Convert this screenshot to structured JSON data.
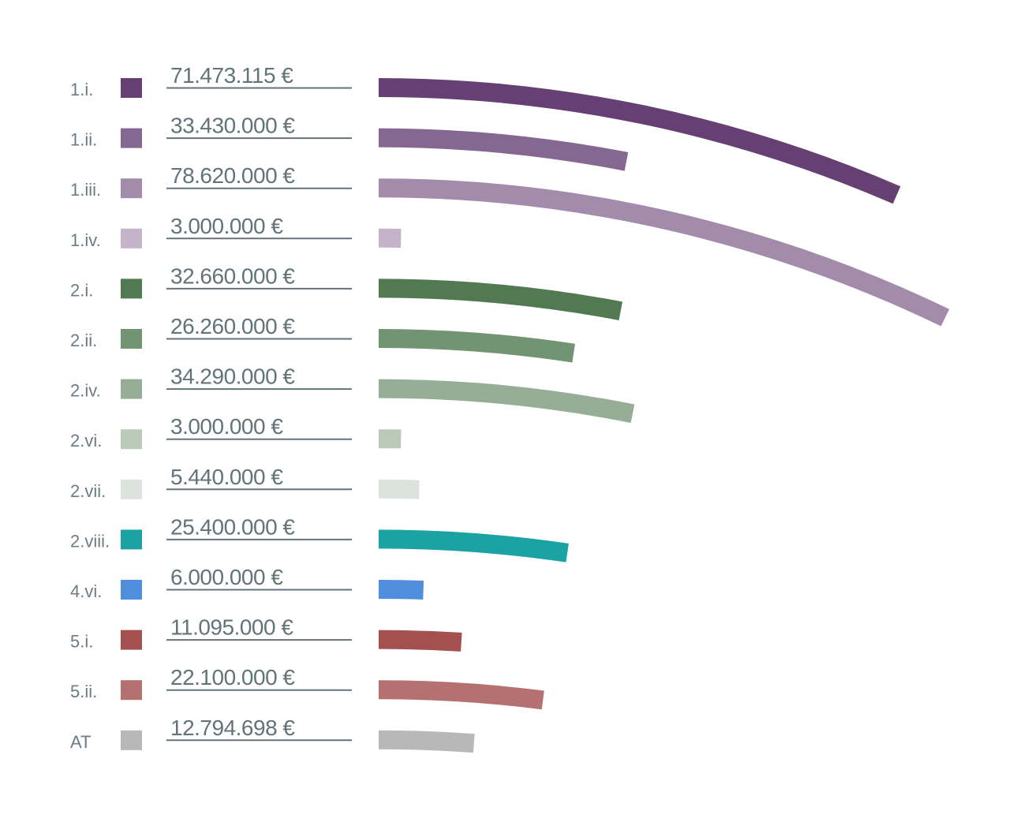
{
  "chart_data": {
    "type": "bar",
    "orientation": "horizontal-curved",
    "unit": "€",
    "categories": [
      "1.i.",
      "1.ii.",
      "1.iii.",
      "1.iv.",
      "2.i.",
      "2.ii.",
      "2.iv.",
      "2.vi.",
      "2.vii.",
      "2.viii.",
      "4.vi.",
      "5.i.",
      "5.ii.",
      "AT"
    ],
    "values": [
      71473115,
      33430000,
      78620000,
      3000000,
      32660000,
      26260000,
      34290000,
      3000000,
      5440000,
      25400000,
      6000000,
      11095000,
      22100000,
      12794698
    ],
    "value_labels": [
      "71.473.115 €",
      "33.430.000 €",
      "78.620.000 €",
      "3.000.000 €",
      "32.660.000 €",
      "26.260.000 €",
      "34.290.000 €",
      "3.000.000 €",
      "5.440.000 €",
      "25.400.000 €",
      "6.000.000 €",
      "11.095.000 €",
      "22.100.000 €",
      "12.794.698 €"
    ],
    "colors": [
      "#663f73",
      "#856891",
      "#a38bab",
      "#c4b3c9",
      "#527a52",
      "#739473",
      "#95ae95",
      "#b9cab9",
      "#dce3dc",
      "#1ba3a3",
      "#4f8edd",
      "#a44f50",
      "#b57170",
      "#b8b8b8"
    ],
    "title": "",
    "xlabel": "",
    "ylabel": ""
  }
}
